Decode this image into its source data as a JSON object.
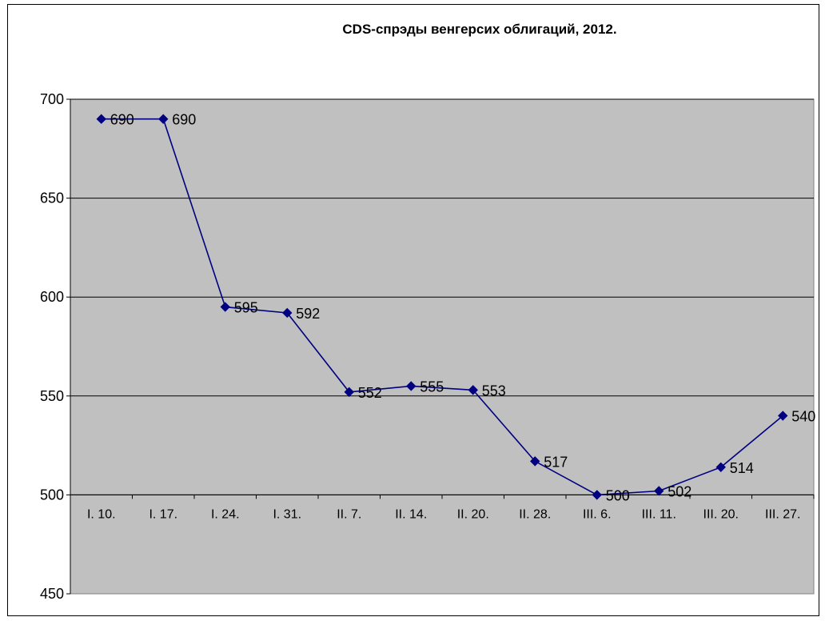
{
  "chart_data": {
    "type": "line",
    "title": "CDS-спрэды венгерсих облигаций, 2012.",
    "xlabel": "",
    "ylabel": "",
    "categories": [
      "I. 10.",
      "I. 17.",
      "I. 24.",
      "I. 31.",
      "II. 7.",
      "II. 14.",
      "II. 20.",
      "II. 28.",
      "III. 6.",
      "III. 11.",
      "III. 20.",
      "III. 27."
    ],
    "series": [
      {
        "values": [
          690,
          690,
          595,
          592,
          552,
          555,
          553,
          517,
          500,
          502,
          514,
          540
        ]
      }
    ],
    "data_labels": [
      "690",
      "690",
      "595",
      "592",
      "552",
      "555",
      "553",
      "517",
      "500",
      "502",
      "514",
      "540"
    ],
    "ylim": [
      450,
      700
    ],
    "yticks": [
      "700",
      "650",
      "600",
      "550",
      "500",
      "450"
    ],
    "x_axis_crosses_at": 500,
    "grid": true,
    "legend": "none",
    "colors": {
      "line": "#000080",
      "marker": "#000080",
      "plot_background": "#c0c0c0",
      "gridline": "#000000"
    }
  }
}
